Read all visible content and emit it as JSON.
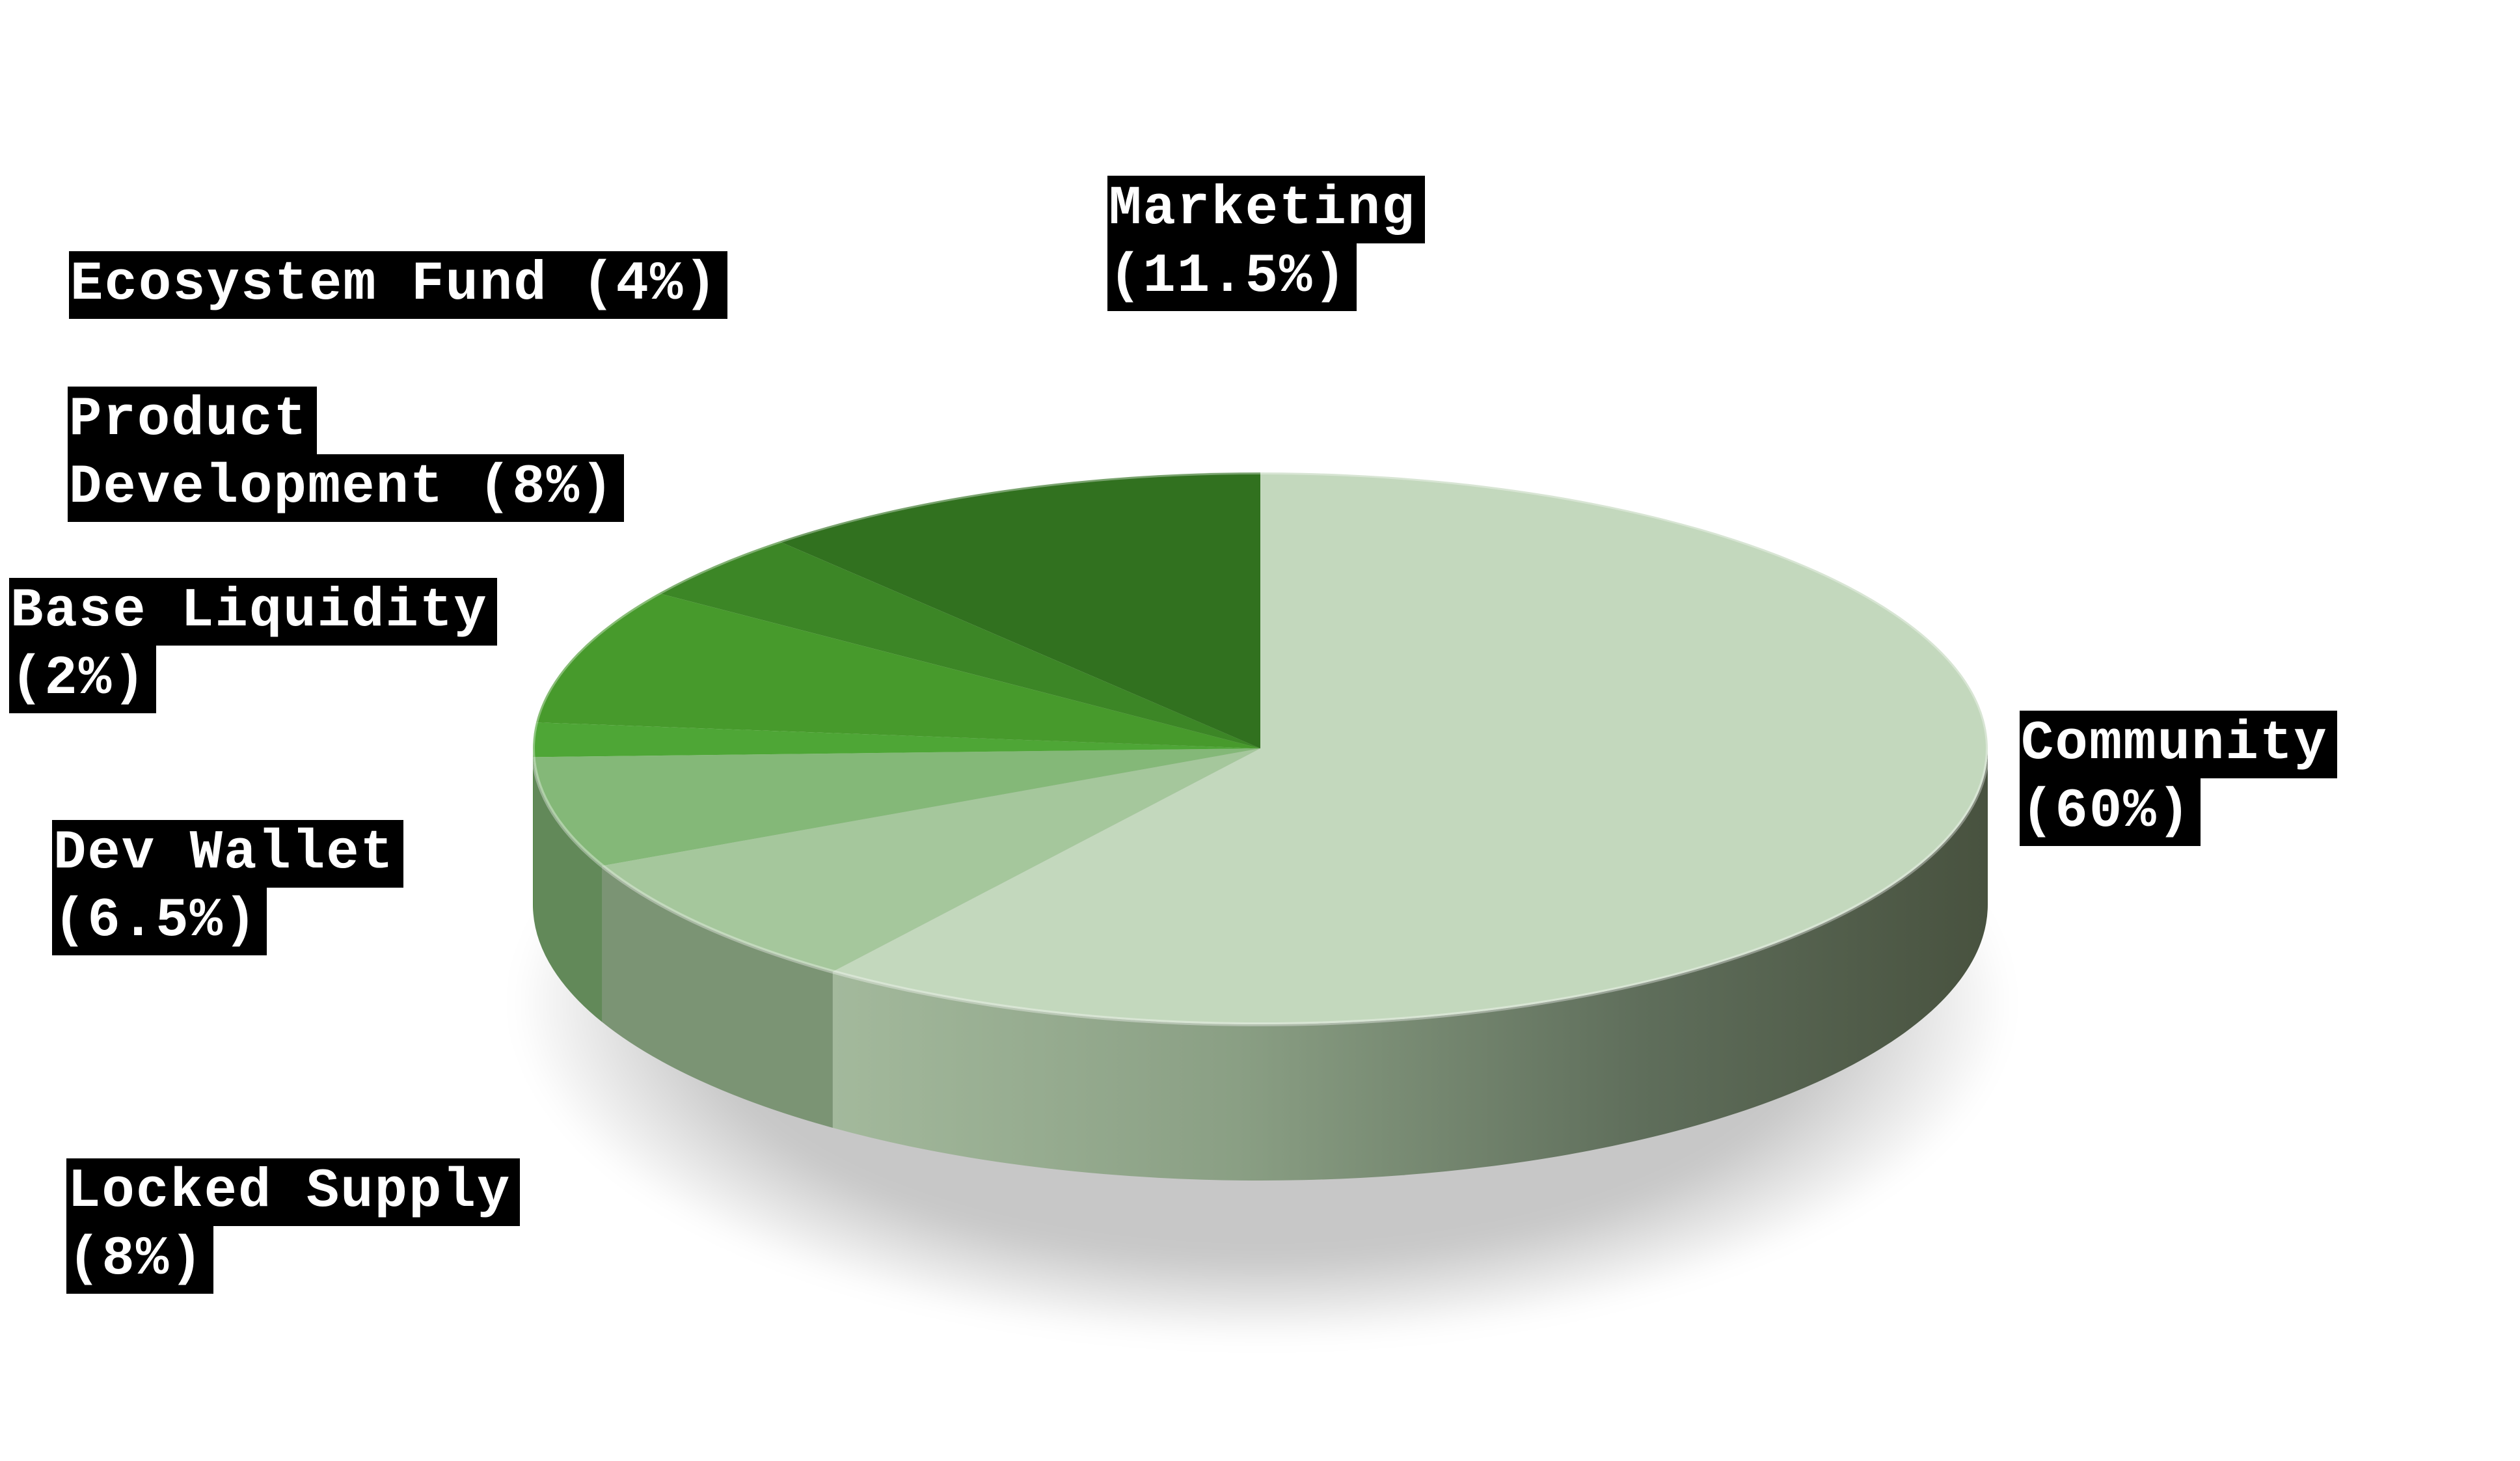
{
  "chart_data": {
    "type": "pie",
    "style": "3d",
    "title": "",
    "legend": "none",
    "slices": [
      {
        "name": "Community",
        "value": 60,
        "label_lines": [
          "Community",
          "(60%)"
        ],
        "color": "#c3d8bd"
      },
      {
        "name": "Locked Supply",
        "value": 8,
        "label_lines": [
          "Locked Supply",
          "(8%)"
        ],
        "color": "#a5c79c"
      },
      {
        "name": "Dev Wallet",
        "value": 6.5,
        "label_lines": [
          "Dev Wallet",
          "(6.5%)"
        ],
        "color": "#84b878"
      },
      {
        "name": "Base Liquidity",
        "value": 2,
        "label_lines": [
          "Base Liquidity",
          "(2%)"
        ],
        "color": "#4ea636"
      },
      {
        "name": "Product Development",
        "value": 8,
        "label_lines": [
          "Product",
          "Development (8%)"
        ],
        "color": "#479a2c"
      },
      {
        "name": "Ecosystem Fund",
        "value": 4,
        "label_lines": [
          "Ecosystem Fund (4%)"
        ],
        "color": "#3c8626"
      },
      {
        "name": "Marketing",
        "value": 11.5,
        "label_lines": [
          "Marketing",
          "(11.5%)"
        ],
        "color": "#31711f"
      }
    ]
  }
}
